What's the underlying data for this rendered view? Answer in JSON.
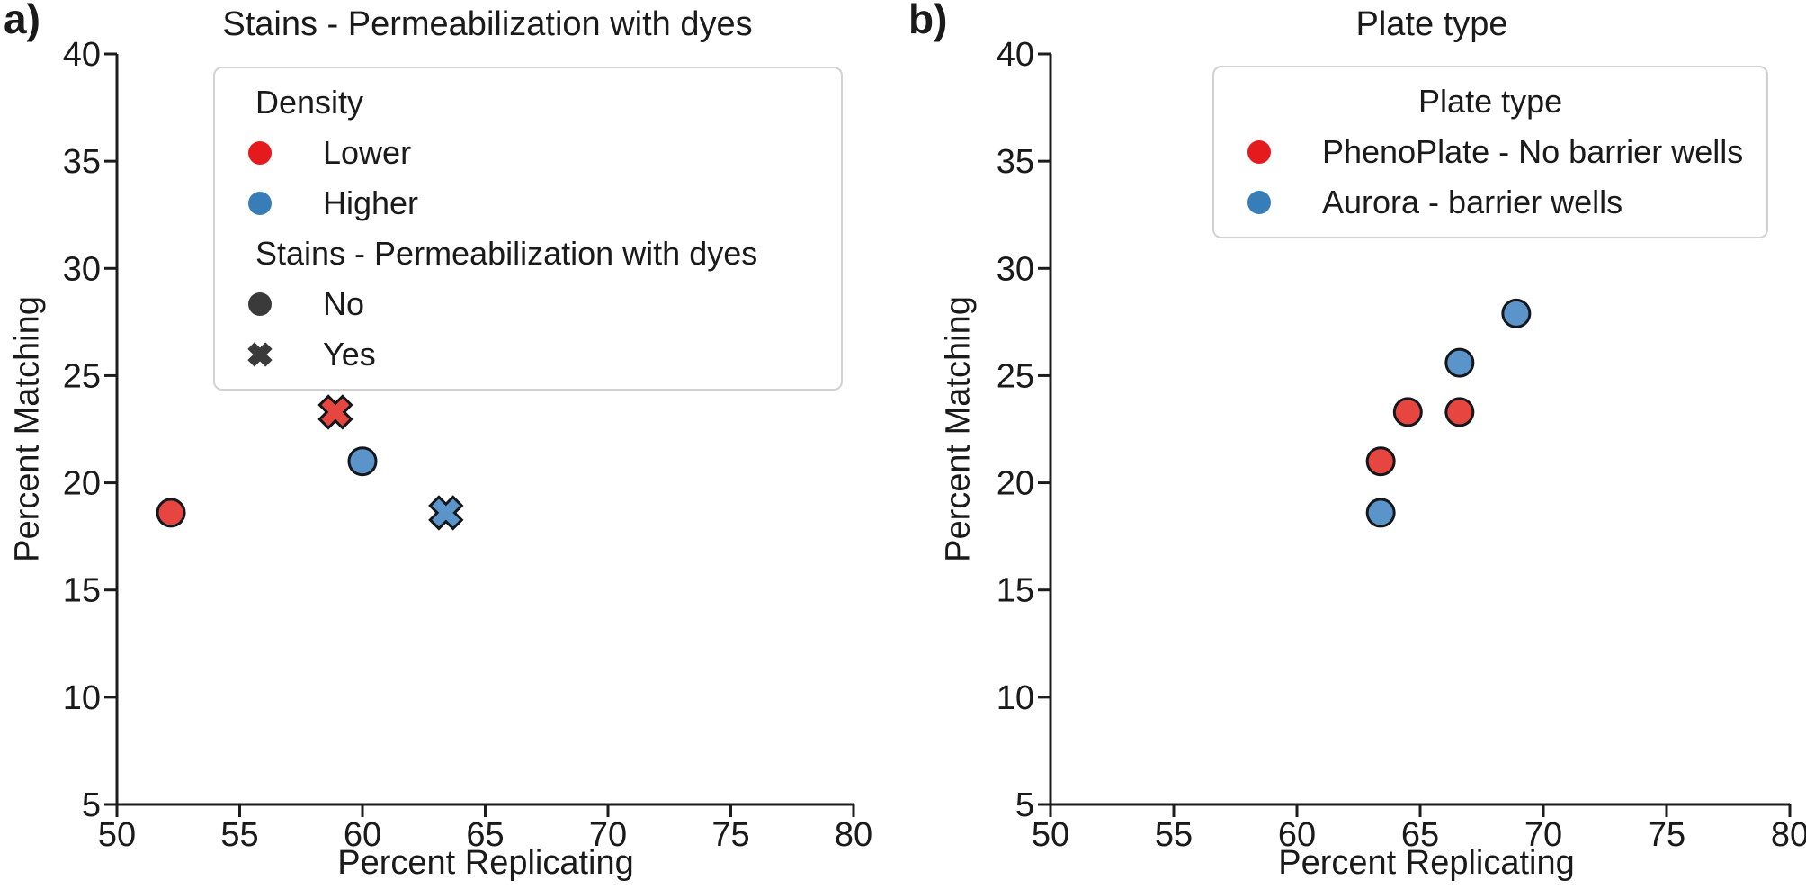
{
  "figure_background": "#ffffff",
  "text_color": "#1a1a1a",
  "axis_color": "#1c1c1c",
  "marker_edge_color": "#14181d",
  "chart_data": [
    {
      "type": "scatter",
      "panel_label": "a)",
      "title": "Stains - Permeabilization with dyes",
      "xlabel": "Percent Replicating",
      "ylabel": "Percent Matching",
      "xlim": [
        50,
        80
      ],
      "ylim": [
        5,
        40
      ],
      "xticks": [
        50,
        55,
        60,
        65,
        70,
        75,
        80
      ],
      "yticks": [
        5,
        10,
        15,
        20,
        25,
        30,
        35,
        40
      ],
      "grid": false,
      "legend_position": "upper-left-inside",
      "legend": {
        "sections": [
          {
            "header": "Density",
            "items": [
              {
                "label": "Lower",
                "marker": "circle",
                "color": "#e41a1c"
              },
              {
                "label": "Higher",
                "marker": "circle",
                "color": "#377eb8"
              }
            ]
          },
          {
            "header": "Stains - Permeabilization with dyes",
            "items": [
              {
                "label": "No",
                "marker": "circle",
                "color": "#3a3a3a"
              },
              {
                "label": "Yes",
                "marker": "x",
                "color": "#3a3a3a"
              }
            ]
          }
        ]
      },
      "series": [
        {
          "name": "Lower / No",
          "marker": "circle",
          "fill": "#e64540",
          "points": [
            {
              "x": 52.2,
              "y": 18.6
            }
          ]
        },
        {
          "name": "Lower / Yes",
          "marker": "x",
          "fill": "#e64540",
          "points": [
            {
              "x": 58.9,
              "y": 23.3
            }
          ]
        },
        {
          "name": "Higher / No",
          "marker": "circle",
          "fill": "#5b94c8",
          "points": [
            {
              "x": 60.0,
              "y": 21.0
            }
          ]
        },
        {
          "name": "Higher / Yes",
          "marker": "x",
          "fill": "#5b94c8",
          "points": [
            {
              "x": 63.4,
              "y": 18.6
            }
          ]
        }
      ]
    },
    {
      "type": "scatter",
      "panel_label": "b)",
      "title": "Plate type",
      "xlabel": "Percent Replicating",
      "ylabel": "Percent Matching",
      "xlim": [
        50,
        80
      ],
      "ylim": [
        5,
        40
      ],
      "xticks": [
        50,
        55,
        60,
        65,
        70,
        75,
        80
      ],
      "yticks": [
        5,
        10,
        15,
        20,
        25,
        30,
        35,
        40
      ],
      "grid": false,
      "legend_position": "upper-right-inside",
      "legend": {
        "title": "Plate type",
        "sections": [
          {
            "items": [
              {
                "label": "PhenoPlate - No barrier wells",
                "marker": "circle",
                "color": "#e41a1c"
              },
              {
                "label": "Aurora - barrier wells",
                "marker": "circle",
                "color": "#377eb8"
              }
            ]
          }
        ]
      },
      "series": [
        {
          "name": "PhenoPlate - No barrier wells",
          "marker": "circle",
          "fill": "#e64540",
          "points": [
            {
              "x": 63.4,
              "y": 21.0
            },
            {
              "x": 64.5,
              "y": 23.3
            },
            {
              "x": 66.6,
              "y": 23.3
            }
          ]
        },
        {
          "name": "Aurora - barrier wells",
          "marker": "circle",
          "fill": "#5b94c8",
          "points": [
            {
              "x": 63.4,
              "y": 18.6
            },
            {
              "x": 66.6,
              "y": 25.6
            },
            {
              "x": 68.9,
              "y": 27.9
            }
          ]
        }
      ]
    }
  ]
}
